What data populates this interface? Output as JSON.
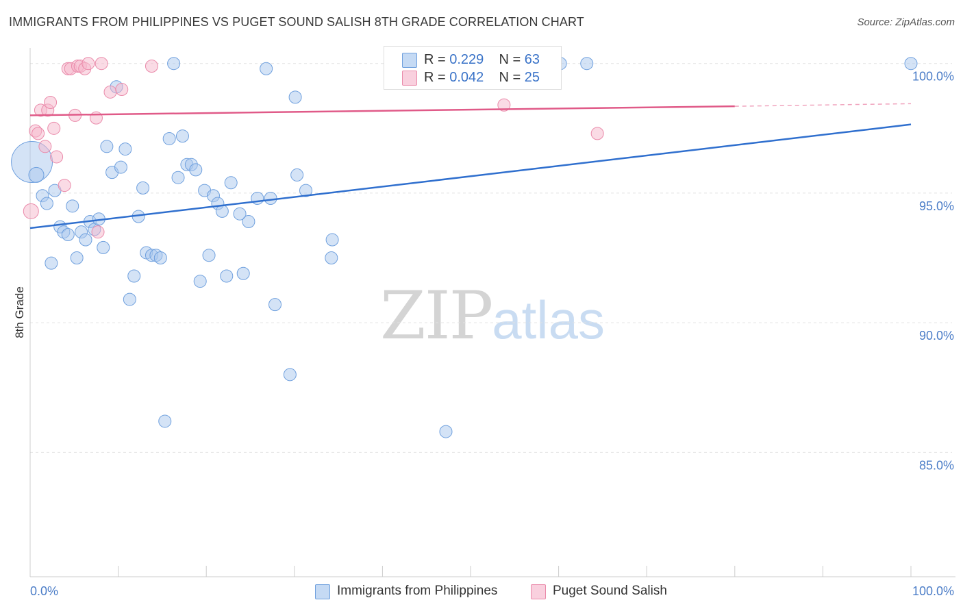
{
  "title": "IMMIGRANTS FROM PHILIPPINES VS PUGET SOUND SALISH 8TH GRADE CORRELATION CHART",
  "source": "Source: ZipAtlas.com",
  "watermark": {
    "zip": "ZIP",
    "atlas": "atlas"
  },
  "legend": {
    "rows": [
      {
        "r_label": "R = ",
        "r_value": "0.229",
        "n_label": "N = ",
        "n_value": "63",
        "color": "#aac8ee"
      },
      {
        "r_label": "R = ",
        "r_value": "0.042",
        "n_label": "N = ",
        "n_value": "25",
        "color": "#f6b8cc"
      }
    ]
  },
  "bottom_legend": [
    {
      "label": "Immigrants from Philippines",
      "color": "#aac8ee"
    },
    {
      "label": "Puget Sound Salish",
      "color": "#f6b8cc"
    }
  ],
  "chart_data": {
    "type": "scatter",
    "title": "IMMIGRANTS FROM PHILIPPINES VS PUGET SOUND SALISH 8TH GRADE CORRELATION CHART",
    "xlabel": "",
    "ylabel": "8th Grade",
    "xlim": [
      0,
      100
    ],
    "ylim": [
      80.2,
      100.6
    ],
    "x_tick_labels": [
      "0.0%",
      "100.0%"
    ],
    "y_ticks": [
      85,
      90,
      95,
      100
    ],
    "y_tick_labels": [
      "85.0%",
      "90.0%",
      "95.0%",
      "100.0%"
    ],
    "grid": true,
    "series": [
      {
        "name": "Immigrants from Philippines",
        "color": "#6fa0de",
        "fill": "#aac8ee",
        "trend": {
          "x0": 0,
          "y0": 93.65,
          "x1": 100,
          "y1": 97.65,
          "color": "#2f6fce"
        },
        "points": [
          [
            0.2,
            96.2,
            30
          ],
          [
            0.7,
            95.7,
            11
          ],
          [
            1.4,
            94.9,
            9
          ],
          [
            1.9,
            94.6,
            9
          ],
          [
            2.4,
            92.3,
            9
          ],
          [
            2.8,
            95.1,
            9
          ],
          [
            3.4,
            93.7,
            9
          ],
          [
            3.8,
            93.5,
            9
          ],
          [
            4.3,
            93.4,
            9
          ],
          [
            4.8,
            94.5,
            9
          ],
          [
            5.3,
            92.5,
            9
          ],
          [
            5.8,
            93.5,
            9
          ],
          [
            6.3,
            93.2,
            9
          ],
          [
            6.8,
            93.9,
            9
          ],
          [
            7.3,
            93.6,
            9
          ],
          [
            7.8,
            94.0,
            9
          ],
          [
            8.3,
            92.9,
            9
          ],
          [
            8.7,
            96.8,
            9
          ],
          [
            9.3,
            95.8,
            9
          ],
          [
            9.8,
            99.1,
            9
          ],
          [
            10.3,
            96.0,
            9
          ],
          [
            10.8,
            96.7,
            9
          ],
          [
            11.3,
            90.9,
            9
          ],
          [
            11.8,
            91.8,
            9
          ],
          [
            12.3,
            94.1,
            9
          ],
          [
            12.8,
            95.2,
            9
          ],
          [
            13.2,
            92.7,
            9
          ],
          [
            13.8,
            92.6,
            9
          ],
          [
            14.3,
            92.6,
            9
          ],
          [
            14.8,
            92.5,
            9
          ],
          [
            15.3,
            86.2,
            9
          ],
          [
            15.8,
            97.1,
            9
          ],
          [
            16.3,
            100.0,
            9
          ],
          [
            16.8,
            95.6,
            9
          ],
          [
            17.3,
            97.2,
            9
          ],
          [
            17.8,
            96.1,
            9
          ],
          [
            18.3,
            96.1,
            9
          ],
          [
            18.8,
            95.9,
            9
          ],
          [
            19.3,
            91.6,
            9
          ],
          [
            19.8,
            95.1,
            9
          ],
          [
            20.3,
            92.6,
            9
          ],
          [
            20.8,
            94.9,
            9
          ],
          [
            21.3,
            94.6,
            9
          ],
          [
            21.8,
            94.3,
            9
          ],
          [
            22.3,
            91.8,
            9
          ],
          [
            22.8,
            95.4,
            9
          ],
          [
            23.8,
            94.2,
            9
          ],
          [
            24.2,
            91.9,
            9
          ],
          [
            24.8,
            93.9,
            9
          ],
          [
            25.8,
            94.8,
            9
          ],
          [
            26.8,
            99.8,
            9
          ],
          [
            27.3,
            94.8,
            9
          ],
          [
            27.8,
            90.7,
            9
          ],
          [
            29.5,
            88.0,
            9
          ],
          [
            30.1,
            98.7,
            9
          ],
          [
            30.3,
            95.7,
            9
          ],
          [
            31.3,
            95.1,
            9
          ],
          [
            34.2,
            92.5,
            9
          ],
          [
            34.3,
            93.2,
            9
          ],
          [
            47.2,
            85.8,
            9
          ],
          [
            60.2,
            100.0,
            9
          ],
          [
            63.2,
            100.0,
            9
          ],
          [
            100.0,
            100.0,
            9
          ]
        ]
      },
      {
        "name": "Puget Sound Salish",
        "color": "#ea8aaa",
        "fill": "#f6b8cc",
        "trend": {
          "x0": 0,
          "y0": 98.0,
          "x1": 80.0,
          "y1": 98.35,
          "color": "#e05a88"
        },
        "trend_dashed": {
          "x0": 80.0,
          "y0": 98.35,
          "x1": 100,
          "y1": 98.45
        },
        "points": [
          [
            0.1,
            94.3,
            11
          ],
          [
            0.6,
            97.4,
            9
          ],
          [
            0.9,
            97.3,
            9
          ],
          [
            1.2,
            98.2,
            9
          ],
          [
            1.7,
            96.8,
            9
          ],
          [
            2.0,
            98.2,
            9
          ],
          [
            2.3,
            98.5,
            9
          ],
          [
            2.7,
            97.5,
            9
          ],
          [
            3.0,
            96.4,
            9
          ],
          [
            3.9,
            95.3,
            9
          ],
          [
            4.3,
            99.8,
            9
          ],
          [
            4.6,
            99.8,
            9
          ],
          [
            5.1,
            98.0,
            9
          ],
          [
            5.4,
            99.9,
            9
          ],
          [
            5.7,
            99.9,
            9
          ],
          [
            6.2,
            99.8,
            9
          ],
          [
            6.6,
            100.0,
            9
          ],
          [
            7.5,
            97.9,
            9
          ],
          [
            7.7,
            93.5,
            9
          ],
          [
            8.1,
            100.0,
            9
          ],
          [
            9.1,
            98.9,
            9
          ],
          [
            10.4,
            99.0,
            9
          ],
          [
            13.8,
            99.9,
            9
          ],
          [
            53.8,
            98.4,
            9
          ],
          [
            64.4,
            97.3,
            9
          ]
        ]
      }
    ]
  }
}
